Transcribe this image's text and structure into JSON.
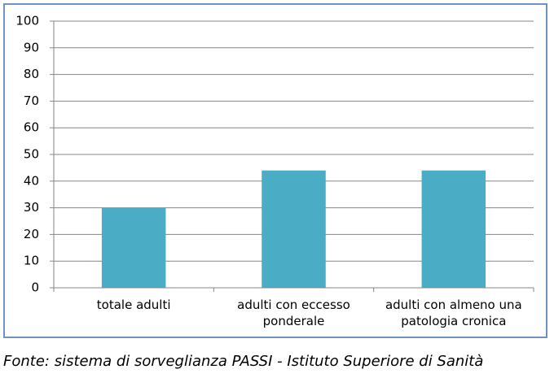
{
  "chart_data": {
    "type": "bar",
    "categories": [
      "totale adulti",
      "adulti con eccesso ponderale",
      "adulti con almeno una patologia cronica"
    ],
    "values": [
      30,
      44,
      44
    ],
    "color": "#4bacc6",
    "ylim": [
      0,
      100
    ],
    "yticks": [
      0,
      10,
      20,
      30,
      40,
      50,
      60,
      70,
      80,
      90,
      100
    ],
    "grid": true,
    "caption": "Fonte: sistema di sorveglianza PASSI - Istituto Superiore di Sanità"
  }
}
